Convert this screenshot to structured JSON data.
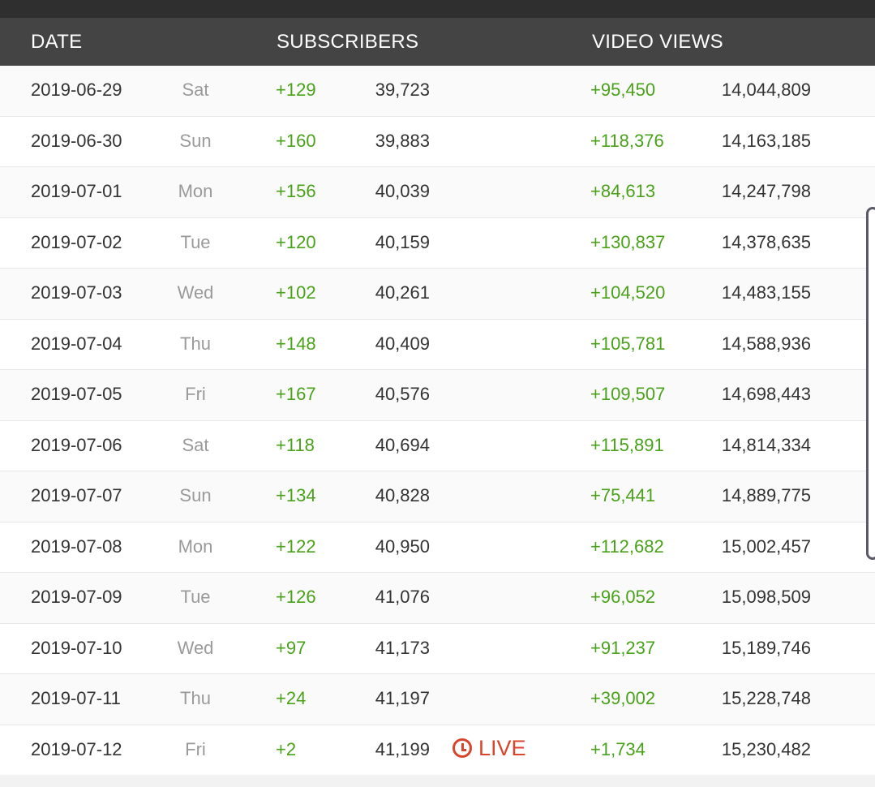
{
  "header": {
    "date_label": "DATE",
    "subscribers_label": "SUBSCRIBERS",
    "views_label": "VIDEO VIEWS"
  },
  "live_label": "LIVE",
  "accent_colors": {
    "positive": "#4aa21a",
    "live": "#d9452c",
    "header_bg": "#444444"
  },
  "rows": [
    {
      "date": "2019-06-29",
      "day": "Sat",
      "sub_delta": "+129",
      "subs": "39,723",
      "view_delta": "+95,450",
      "views": "14,044,809"
    },
    {
      "date": "2019-06-30",
      "day": "Sun",
      "sub_delta": "+160",
      "subs": "39,883",
      "view_delta": "+118,376",
      "views": "14,163,185"
    },
    {
      "date": "2019-07-01",
      "day": "Mon",
      "sub_delta": "+156",
      "subs": "40,039",
      "view_delta": "+84,613",
      "views": "14,247,798"
    },
    {
      "date": "2019-07-02",
      "day": "Tue",
      "sub_delta": "+120",
      "subs": "40,159",
      "view_delta": "+130,837",
      "views": "14,378,635"
    },
    {
      "date": "2019-07-03",
      "day": "Wed",
      "sub_delta": "+102",
      "subs": "40,261",
      "view_delta": "+104,520",
      "views": "14,483,155"
    },
    {
      "date": "2019-07-04",
      "day": "Thu",
      "sub_delta": "+148",
      "subs": "40,409",
      "view_delta": "+105,781",
      "views": "14,588,936"
    },
    {
      "date": "2019-07-05",
      "day": "Fri",
      "sub_delta": "+167",
      "subs": "40,576",
      "view_delta": "+109,507",
      "views": "14,698,443"
    },
    {
      "date": "2019-07-06",
      "day": "Sat",
      "sub_delta": "+118",
      "subs": "40,694",
      "view_delta": "+115,891",
      "views": "14,814,334"
    },
    {
      "date": "2019-07-07",
      "day": "Sun",
      "sub_delta": "+134",
      "subs": "40,828",
      "view_delta": "+75,441",
      "views": "14,889,775"
    },
    {
      "date": "2019-07-08",
      "day": "Mon",
      "sub_delta": "+122",
      "subs": "40,950",
      "view_delta": "+112,682",
      "views": "15,002,457"
    },
    {
      "date": "2019-07-09",
      "day": "Tue",
      "sub_delta": "+126",
      "subs": "41,076",
      "view_delta": "+96,052",
      "views": "15,098,509"
    },
    {
      "date": "2019-07-10",
      "day": "Wed",
      "sub_delta": "+97",
      "subs": "41,173",
      "view_delta": "+91,237",
      "views": "15,189,746"
    },
    {
      "date": "2019-07-11",
      "day": "Thu",
      "sub_delta": "+24",
      "subs": "41,197",
      "view_delta": "+39,002",
      "views": "15,228,748"
    },
    {
      "date": "2019-07-12",
      "day": "Fri",
      "sub_delta": "+2",
      "subs": "41,199",
      "view_delta": "+1,734",
      "views": "15,230,482",
      "live": true
    }
  ]
}
